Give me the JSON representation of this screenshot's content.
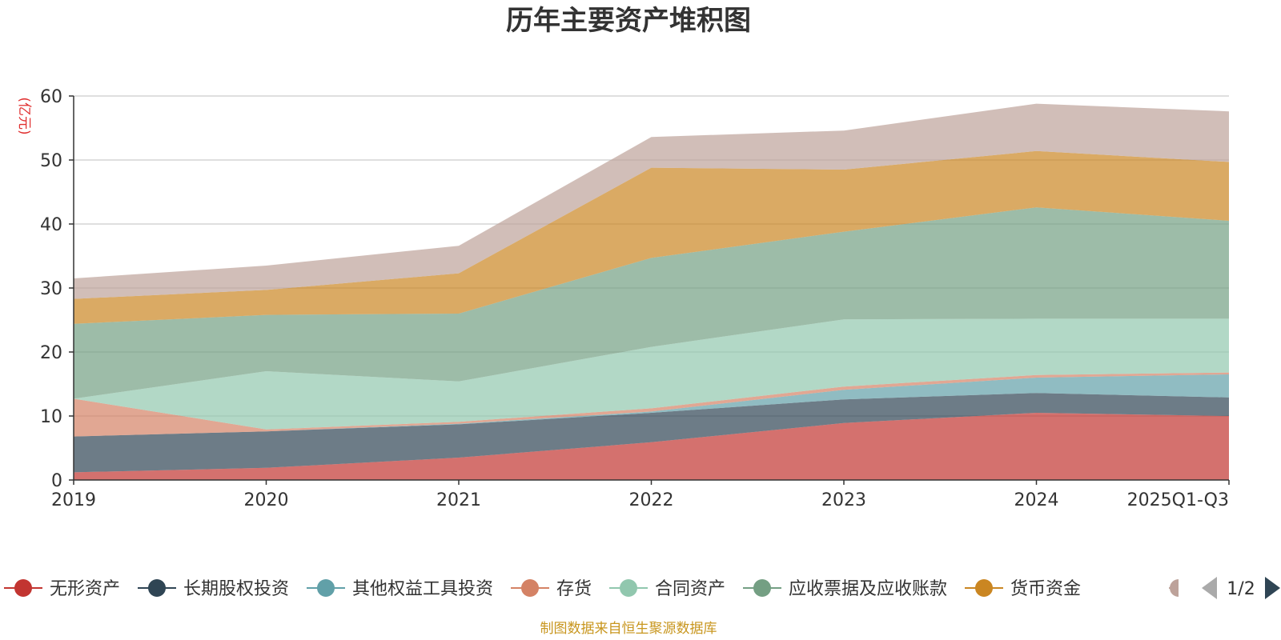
{
  "chart_data": {
    "type": "area",
    "stacked": true,
    "title": "历年主要资产堆积图",
    "unit_label": "(亿元)",
    "categories": [
      "2019",
      "2020",
      "2021",
      "2022",
      "2023",
      "2024",
      "2025Q1-Q3"
    ],
    "ylim": [
      0,
      60
    ],
    "yticks": [
      0,
      10,
      20,
      30,
      40,
      50,
      60
    ],
    "grid": true,
    "series": [
      {
        "name": "无形资产",
        "color": "#c23531",
        "values": [
          1.2,
          1.9,
          3.5,
          5.9,
          8.9,
          10.5,
          10.0
        ]
      },
      {
        "name": "长期股权投资",
        "color": "#2f4554",
        "values": [
          5.6,
          5.7,
          5.2,
          4.6,
          3.7,
          3.1,
          2.9
        ]
      },
      {
        "name": "其他权益工具投资",
        "color": "#61a0a8",
        "values": [
          0.0,
          0.0,
          0.1,
          0.2,
          1.5,
          2.4,
          3.6
        ]
      },
      {
        "name": "存货",
        "color": "#d48265",
        "values": [
          5.9,
          0.3,
          0.3,
          0.5,
          0.5,
          0.4,
          0.3
        ]
      },
      {
        "name": "合同资产",
        "color": "#91c7ae",
        "values": [
          0.0,
          9.1,
          6.3,
          9.6,
          10.5,
          8.8,
          8.4
        ]
      },
      {
        "name": "应收票据及应收账款",
        "color": "#749f83",
        "values": [
          11.7,
          8.8,
          10.6,
          13.9,
          13.7,
          17.4,
          15.3
        ]
      },
      {
        "name": "货币资金",
        "color": "#ca8622",
        "values": [
          3.9,
          3.9,
          6.3,
          14.1,
          9.7,
          8.8,
          9.2
        ]
      },
      {
        "name": "",
        "color": "#bda29a",
        "values": [
          3.2,
          3.8,
          4.3,
          4.8,
          6.1,
          7.4,
          7.9
        ]
      }
    ],
    "legend": {
      "position": "bottom",
      "page": "1/2",
      "visible_series": [
        "无形资产",
        "长期股权投资",
        "其他权益工具投资",
        "存货",
        "合同资产",
        "应收票据及应收账款",
        "货币资金"
      ]
    }
  },
  "footer": {
    "source": "制图数据来自恒生聚源数据库"
  }
}
